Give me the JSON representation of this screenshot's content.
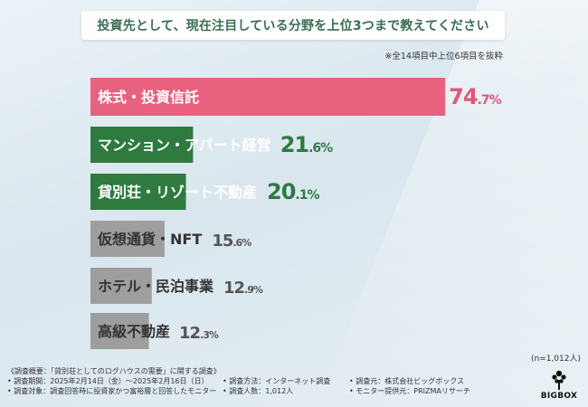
{
  "title": "投資先として、現在注目している分野を上位3つまで教えてください",
  "note": "※全14項目中上位6項目を抜粋",
  "sample": "(n=1,012人)",
  "colors": {
    "top": "#e8617e",
    "green": "#2e7a3f",
    "gray": "#9e9e9e",
    "pct_top": "#e0567a",
    "pct_green": "#2e7a3f",
    "pct_gray": "#555555",
    "label_top": "#ffffff",
    "label_green": "#ffffff",
    "label_gray": "#333333"
  },
  "chart_data": {
    "type": "bar",
    "orientation": "horizontal",
    "title": "投資先として、現在注目している分野を上位3つまで教えてください",
    "categories": [
      "株式・投資信託",
      "マンション・アパート経営",
      "貸別荘・リゾート不動産",
      "仮想通貨・NFT",
      "ホテル・民泊事業",
      "高級不動産"
    ],
    "values": [
      74.7,
      21.6,
      20.1,
      15.6,
      12.9,
      12.3
    ],
    "unit": "%",
    "styles": [
      "top",
      "green",
      "green",
      "gray",
      "gray",
      "gray"
    ],
    "xlim": [
      0,
      100
    ]
  },
  "footer": {
    "row1": {
      "c1": "《調査概要：「貸別荘としてのログハウスの需要」に関する調査》"
    },
    "row2": {
      "c1": "• 調査期間：2025年2月14日（金）〜2025年2月16日（日）",
      "c2": "• 調査方法：インターネット調査",
      "c3": "• 調査元：株式会社ビッグボックス"
    },
    "row3": {
      "c1": "• 調査対象：調査回答時に投資家かつ富裕層と回答したモニター",
      "c2": "• 調査人数：1,012人",
      "c3": "• モニター提供元：PRIZMAリサーチ"
    }
  },
  "logo": {
    "text": "BIGBOX",
    "icon": "tree-icon"
  }
}
